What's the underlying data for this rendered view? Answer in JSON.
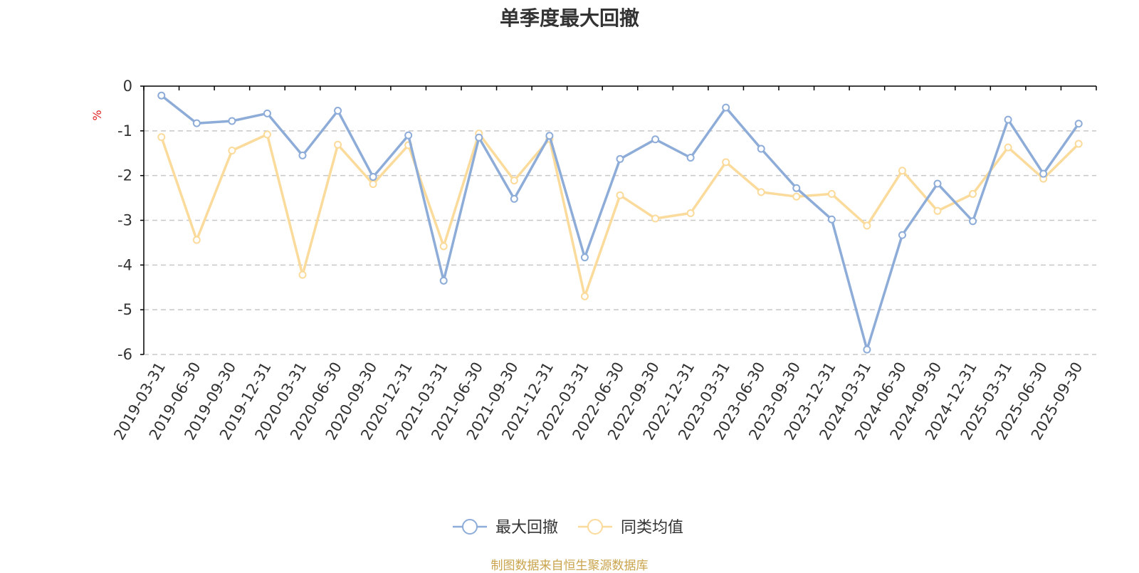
{
  "chart_data": {
    "type": "line",
    "title": "单季度最大回撤",
    "ylabel": "%",
    "ylim": [
      -6,
      0
    ],
    "yticks": [
      0,
      -1,
      -2,
      -3,
      -4,
      -5,
      -6
    ],
    "grid": true,
    "legend_position": "bottom-center",
    "x": [
      "2019-03-31",
      "2019-06-30",
      "2019-09-30",
      "2019-12-31",
      "2020-03-31",
      "2020-06-30",
      "2020-09-30",
      "2020-12-31",
      "2021-03-31",
      "2021-06-30",
      "2021-09-30",
      "2021-12-31",
      "2022-03-31",
      "2022-06-30",
      "2022-09-30",
      "2022-12-31",
      "2023-03-31",
      "2023-06-30",
      "2023-09-30",
      "2023-12-31",
      "2024-03-31",
      "2024-06-30",
      "2024-09-30",
      "2024-12-31",
      "2025-03-31",
      "2025-06-30",
      "2025-09-30"
    ],
    "series": [
      {
        "name": "最大回撤",
        "color": "#8eacd8",
        "values": [
          -0.21,
          -0.83,
          -0.78,
          -0.61,
          -1.55,
          -0.55,
          -2.03,
          -1.1,
          -4.35,
          -1.15,
          -2.52,
          -1.11,
          -3.83,
          -1.63,
          -1.19,
          -1.6,
          -0.48,
          -1.4,
          -2.28,
          -2.98,
          -5.89,
          -3.33,
          -2.18,
          -3.02,
          -0.75,
          -1.96,
          -0.84
        ]
      },
      {
        "name": "同类均值",
        "color": "#fbdb9b",
        "values": [
          -1.14,
          -3.44,
          -1.44,
          -1.08,
          -4.22,
          -1.31,
          -2.19,
          -1.32,
          -3.58,
          -1.06,
          -2.11,
          -1.18,
          -4.7,
          -2.44,
          -2.96,
          -2.84,
          -1.7,
          -2.37,
          -2.47,
          -2.41,
          -3.12,
          -1.89,
          -2.79,
          -2.41,
          -1.37,
          -2.07,
          -1.29
        ]
      }
    ]
  },
  "source_text": "制图数据来自恒生聚源数据库",
  "source_color": "#c9a44d",
  "axis_color": "#000000",
  "ylabel_color": "#e02020"
}
